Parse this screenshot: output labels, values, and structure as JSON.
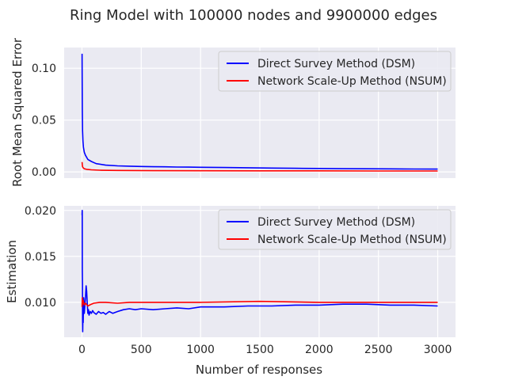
{
  "figure": {
    "title": "Ring Model with 100000 nodes and 9900000 edges",
    "xlabel": "Number of responses"
  },
  "colors": {
    "plot_bg": "#eaeaf2",
    "grid": "#ffffff",
    "dsm": "#0000ff",
    "nsum": "#ff0000",
    "text": "#262626"
  },
  "chart_data": [
    {
      "type": "line",
      "ylabel": "Root Mean Squared Error",
      "xlim": [
        -150,
        3150
      ],
      "ylim": [
        -0.006,
        0.12
      ],
      "xticks": [
        0,
        500,
        1000,
        1500,
        2000,
        2500,
        3000
      ],
      "xtick_labels": [
        "0",
        "500",
        "1000",
        "1500",
        "2000",
        "2500",
        "3000"
      ],
      "show_xtick_labels": false,
      "yticks": [
        0.0,
        0.05,
        0.1
      ],
      "ytick_labels": [
        "0.00",
        "0.05",
        "0.10"
      ],
      "grid": true,
      "legend_position": "top-right",
      "series": [
        {
          "name": "Direct Survey Method (DSM)",
          "color": "#0000ff",
          "x": [
            1,
            3,
            5,
            8,
            12,
            20,
            30,
            50,
            80,
            120,
            200,
            300,
            400,
            500,
            600,
            700,
            800,
            900,
            1000,
            1200,
            1400,
            1600,
            1800,
            2000,
            2200,
            2400,
            2600,
            2800,
            3000
          ],
          "y": [
            0.114,
            0.06,
            0.04,
            0.03,
            0.024,
            0.019,
            0.016,
            0.012,
            0.01,
            0.008,
            0.0065,
            0.0058,
            0.0055,
            0.0052,
            0.005,
            0.0049,
            0.0047,
            0.0046,
            0.0045,
            0.0042,
            0.004,
            0.0037,
            0.0035,
            0.0033,
            0.0031,
            0.003,
            0.0029,
            0.0028,
            0.0027
          ]
        },
        {
          "name": "Network Scale-Up Method (NSUM)",
          "color": "#ff0000",
          "x": [
            1,
            3,
            5,
            10,
            20,
            40,
            80,
            150,
            300,
            600,
            1000,
            1500,
            2000,
            2500,
            3000
          ],
          "y": [
            0.0095,
            0.007,
            0.005,
            0.004,
            0.003,
            0.0025,
            0.002,
            0.0016,
            0.0014,
            0.0012,
            0.0011,
            0.001,
            0.001,
            0.0009,
            0.0009
          ]
        }
      ]
    },
    {
      "type": "line",
      "ylabel": "Estimation",
      "xlim": [
        -150,
        3150
      ],
      "ylim": [
        0.0062,
        0.0205
      ],
      "xticks": [
        0,
        500,
        1000,
        1500,
        2000,
        2500,
        3000
      ],
      "xtick_labels": [
        "0",
        "500",
        "1000",
        "1500",
        "2000",
        "2500",
        "3000"
      ],
      "show_xtick_labels": true,
      "yticks": [
        0.01,
        0.015,
        0.02
      ],
      "ytick_labels": [
        "0.010",
        "0.015",
        "0.020"
      ],
      "grid": true,
      "legend_position": "top-right",
      "series": [
        {
          "name": "Direct Survey Method (DSM)",
          "color": "#0000ff",
          "x": [
            1,
            2,
            3,
            4,
            5,
            6,
            8,
            10,
            12,
            15,
            20,
            25,
            30,
            35,
            40,
            45,
            50,
            55,
            60,
            70,
            80,
            90,
            100,
            120,
            140,
            160,
            180,
            200,
            230,
            260,
            300,
            350,
            400,
            450,
            500,
            600,
            700,
            800,
            900,
            1000,
            1200,
            1400,
            1600,
            1800,
            2000,
            2200,
            2400,
            2600,
            2800,
            3000
          ],
          "y": [
            0.0195,
            0.02,
            0.0135,
            0.012,
            0.008,
            0.0068,
            0.0085,
            0.0078,
            0.0095,
            0.0105,
            0.0088,
            0.0097,
            0.0105,
            0.0118,
            0.0112,
            0.0098,
            0.0088,
            0.0092,
            0.0086,
            0.009,
            0.0088,
            0.0091,
            0.0089,
            0.0087,
            0.009,
            0.0088,
            0.0089,
            0.0087,
            0.009,
            0.0088,
            0.009,
            0.0092,
            0.0093,
            0.0092,
            0.0093,
            0.0092,
            0.0093,
            0.0094,
            0.0093,
            0.0095,
            0.0095,
            0.0096,
            0.0096,
            0.0097,
            0.0097,
            0.0098,
            0.0098,
            0.0097,
            0.0097,
            0.0096
          ]
        },
        {
          "name": "Network Scale-Up Method (NSUM)",
          "color": "#ff0000",
          "x": [
            1,
            3,
            5,
            10,
            20,
            30,
            50,
            80,
            100,
            150,
            200,
            300,
            400,
            500,
            700,
            1000,
            1500,
            2000,
            2500,
            3000
          ],
          "y": [
            0.0095,
            0.0105,
            0.0098,
            0.0102,
            0.0097,
            0.0099,
            0.0096,
            0.0098,
            0.0099,
            0.01,
            0.01,
            0.0099,
            0.01,
            0.01,
            0.01,
            0.01,
            0.0101,
            0.01,
            0.01,
            0.01
          ]
        }
      ]
    }
  ]
}
